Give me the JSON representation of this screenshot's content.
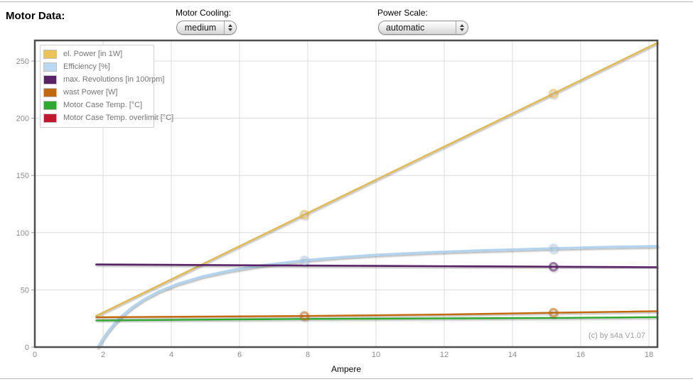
{
  "header": {
    "title": "Motor Data:"
  },
  "controls": {
    "motor_cooling": {
      "label": "Motor Cooling:",
      "value": "medium"
    },
    "power_scale": {
      "label": "Power Scale:",
      "value": "automatic"
    }
  },
  "chart_data": {
    "type": "line",
    "xlabel": "Ampere",
    "ylabel": "",
    "xlim": [
      0,
      18.25
    ],
    "ylim": [
      0,
      268
    ],
    "x_ticks": [
      0,
      2,
      4,
      6,
      8,
      10,
      12,
      14,
      16,
      18
    ],
    "y_ticks": [
      0,
      50,
      100,
      150,
      200,
      250
    ],
    "grid": true,
    "legend_position": "top-left",
    "watermark": "(c) by s4a    V1.07",
    "colors": {
      "grid": "#dcdcdc",
      "frame": "#4e4e4e",
      "tick_text": "#8c8c8c",
      "tick_dash": "#999999"
    },
    "series": [
      {
        "name": "el. Power [in 1W]",
        "color": "#e2b94f",
        "swatch": "#eac358",
        "width": 2.4,
        "points": [
          [
            1.8,
            27.3
          ],
          [
            7.9,
            115.8
          ],
          [
            15.2,
            221.6
          ],
          [
            18.25,
            266
          ]
        ],
        "markers": [
          [
            7.9,
            115.8
          ],
          [
            15.2,
            221.6
          ]
        ]
      },
      {
        "name": "Efficiency [%]",
        "color": "#b3d4ee",
        "swatch": "#b9d8f2",
        "width": 3.4,
        "points": [
          [
            1.85,
            0
          ],
          [
            1.95,
            5.1
          ],
          [
            2.1,
            11.8
          ],
          [
            2.3,
            19.4
          ],
          [
            2.55,
            27.2
          ],
          [
            2.85,
            34.7
          ],
          [
            3.2,
            41.8
          ],
          [
            3.65,
            48.8
          ],
          [
            4.2,
            55.4
          ],
          [
            4.9,
            61.6
          ],
          [
            5.7,
            66.8
          ],
          [
            6.6,
            71.2
          ],
          [
            7.9,
            75.8
          ],
          [
            9,
            78.6
          ],
          [
            10,
            80.6
          ],
          [
            11.5,
            82.7
          ],
          [
            13,
            84.4
          ],
          [
            14.5,
            85.7
          ],
          [
            15.2,
            86.3
          ],
          [
            16.5,
            87.3
          ],
          [
            18.25,
            88.2
          ]
        ],
        "markers": [
          [
            7.9,
            75.8
          ],
          [
            15.2,
            86.3
          ]
        ]
      },
      {
        "name": "max. Revolutions [in 100rpm]",
        "color": "#5a2366",
        "swatch": "#5a2366",
        "width": 2.6,
        "points": [
          [
            1.8,
            72.2
          ],
          [
            7.9,
            71.3
          ],
          [
            15.2,
            70.2
          ],
          [
            18.25,
            69.8
          ]
        ],
        "markers": [
          [
            15.2,
            70.2
          ]
        ]
      },
      {
        "name": "wast Power [W]",
        "color": "#c2690f",
        "swatch": "#c2690f",
        "width": 2.4,
        "points": [
          [
            1.8,
            26.1
          ],
          [
            7.9,
            27.2
          ],
          [
            12,
            28.5
          ],
          [
            15.2,
            30.0
          ],
          [
            18.25,
            31.4
          ]
        ],
        "markers": [
          [
            7.9,
            27.2
          ],
          [
            15.2,
            30.0
          ]
        ]
      },
      {
        "name": "Motor Case Temp. [°C]",
        "color": "#2fa92f",
        "swatch": "#2fa92f",
        "width": 2.4,
        "points": [
          [
            1.8,
            23.3
          ],
          [
            7.9,
            24.6
          ],
          [
            15.2,
            25.5
          ],
          [
            18.25,
            26.2
          ]
        ],
        "markers": []
      },
      {
        "name": "Motor Case Temp. overlimit [°C]",
        "color": "#c2182f",
        "swatch": "#c2182f",
        "width": 2.4,
        "points": [],
        "markers": []
      }
    ]
  }
}
